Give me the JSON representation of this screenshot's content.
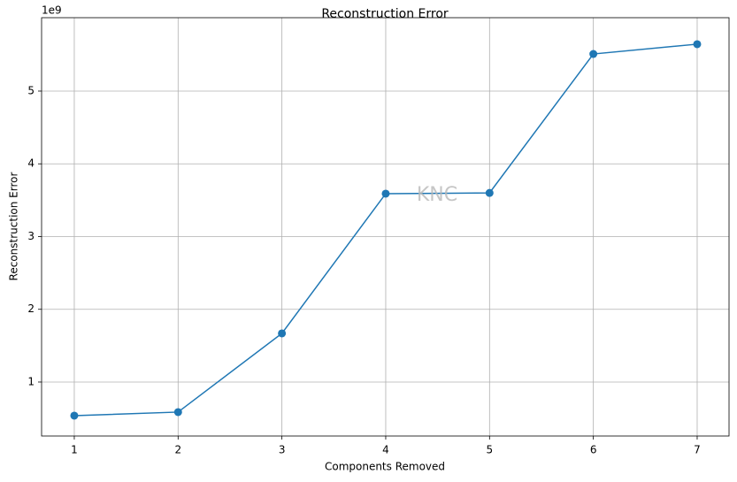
{
  "chart_data": {
    "type": "line",
    "title": "Reconstruction Error",
    "xlabel": "Components Removed",
    "ylabel": "Reconstruction Error",
    "y_offset_label": "1e9",
    "watermark": "KNC",
    "x": [
      1,
      2,
      3,
      4,
      5,
      6,
      7
    ],
    "series": [
      {
        "color": "#1f77b4",
        "values": [
          0.538,
          0.587,
          1.669,
          3.59,
          3.6,
          5.51,
          5.645
        ]
      }
    ],
    "xlim": [
      0.685,
      7.307
    ],
    "xticks": [
      1,
      2,
      3,
      4,
      5,
      6,
      7
    ],
    "ylim": [
      0.258,
      6.009
    ],
    "yticks": [
      1,
      2,
      3,
      4,
      5
    ],
    "grid": true,
    "marker": "circle"
  }
}
